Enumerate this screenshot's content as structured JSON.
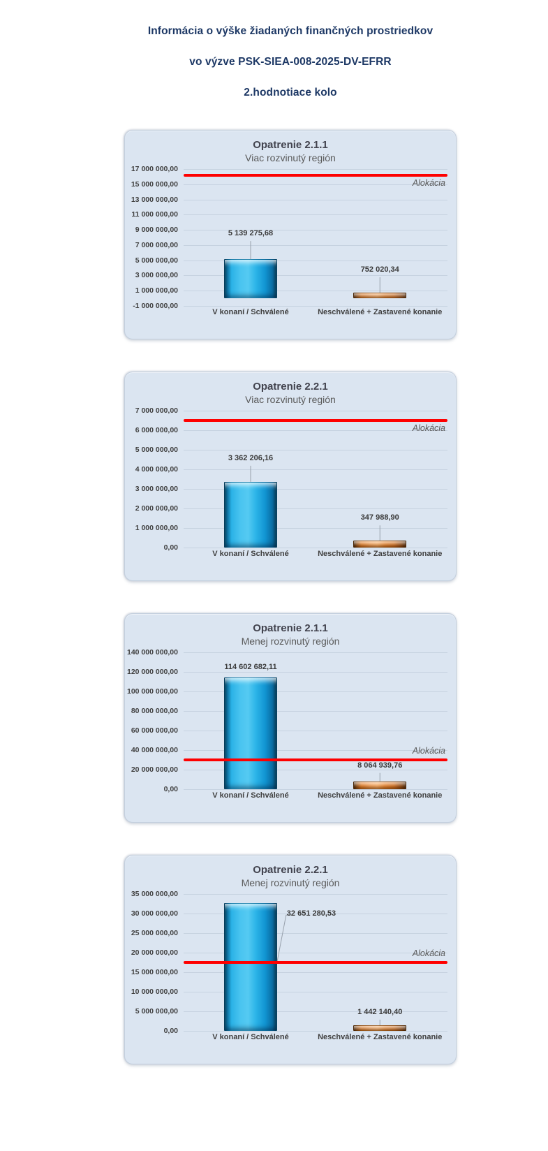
{
  "page": {
    "title_lines": [
      "Informácia o výške žiadaných finančných prostriedkov",
      "vo výzve PSK-SIEA-008-2025-DV-EFRR",
      "2.hodnotiace kolo"
    ]
  },
  "colors": {
    "page_title": "#1d3865",
    "panel_background": "#dbe5f1",
    "gridline": "#c6d2e0",
    "allocation_line": "#fe0000",
    "bar_blue": "#1ea7e0",
    "bar_orange": "#e07b22",
    "chart_title": "#42434e",
    "chart_subtitle": "#595959",
    "value_label": "#3a3a3a",
    "leader_line": "#98a1ac"
  },
  "chart_data": [
    {
      "type": "bar",
      "title": "Opatrenie 2.1.1",
      "subtitle": "Viac rozvinutý región",
      "categories": [
        "V konaní / Schválené",
        "Neschválené + Zastavené konanie"
      ],
      "values": [
        5139275.68,
        752020.34
      ],
      "value_labels": [
        "5 139 275,68",
        "752 020,34"
      ],
      "bar_colors": [
        "blue",
        "orange"
      ],
      "ylim": [
        -1000000,
        17000000
      ],
      "y_ticks": [
        {
          "value": 17000000,
          "label": "17 000 000,00"
        },
        {
          "value": 15000000,
          "label": "15 000 000,00"
        },
        {
          "value": 13000000,
          "label": "13 000 000,00"
        },
        {
          "value": 11000000,
          "label": "11 000 000,00"
        },
        {
          "value": 9000000,
          "label": "9 000 000,00"
        },
        {
          "value": 7000000,
          "label": "7 000 000,00"
        },
        {
          "value": 5000000,
          "label": "5 000 000,00"
        },
        {
          "value": 3000000,
          "label": "3 000 000,00"
        },
        {
          "value": 1000000,
          "label": "1 000 000,00"
        },
        {
          "value": -1000000,
          "label": "-1 000 000,00"
        }
      ],
      "allocation": {
        "label": "Alokácia",
        "value": 16200000,
        "label_position": "below"
      },
      "grid": true,
      "legend": "none",
      "label_layout": [
        {
          "placement": "above",
          "gap": 28
        },
        {
          "placement": "above",
          "gap": 24
        }
      ]
    },
    {
      "type": "bar",
      "title": "Opatrenie 2.2.1",
      "subtitle": "Viac rozvinutý región",
      "categories": [
        "V konaní / Schválené",
        "Neschválené + Zastavené konanie"
      ],
      "values": [
        3362206.16,
        347988.9
      ],
      "value_labels": [
        "3 362 206,16",
        "347 988,90"
      ],
      "bar_colors": [
        "blue",
        "orange"
      ],
      "ylim": [
        0,
        7000000
      ],
      "y_ticks": [
        {
          "value": 7000000,
          "label": "7 000 000,00"
        },
        {
          "value": 6000000,
          "label": "6 000 000,00"
        },
        {
          "value": 5000000,
          "label": "5 000 000,00"
        },
        {
          "value": 4000000,
          "label": "4 000 000,00"
        },
        {
          "value": 3000000,
          "label": "3 000 000,00"
        },
        {
          "value": 2000000,
          "label": "2 000 000,00"
        },
        {
          "value": 1000000,
          "label": "1 000 000,00"
        },
        {
          "value": 0,
          "label": "0,00"
        }
      ],
      "allocation": {
        "label": "Alokácia",
        "value": 6500000,
        "label_position": "below"
      },
      "grid": true,
      "legend": "none",
      "label_layout": [
        {
          "placement": "above",
          "gap": 25
        },
        {
          "placement": "above",
          "gap": 24
        }
      ]
    },
    {
      "type": "bar",
      "title": "Opatrenie 2.1.1",
      "subtitle": "Menej rozvinutý región",
      "categories": [
        "V konaní / Schválené",
        "Neschválené + Zastavené konanie"
      ],
      "values": [
        114602682.11,
        8064939.76
      ],
      "value_labels": [
        "114 602 682,11",
        "8 064 939,76"
      ],
      "bar_colors": [
        "blue",
        "orange"
      ],
      "ylim": [
        0,
        140000000
      ],
      "y_ticks": [
        {
          "value": 140000000,
          "label": "140 000 000,00"
        },
        {
          "value": 120000000,
          "label": "120 000 000,00"
        },
        {
          "value": 100000000,
          "label": "100 000 000,00"
        },
        {
          "value": 80000000,
          "label": "80 000 000,00"
        },
        {
          "value": 60000000,
          "label": "60 000 000,00"
        },
        {
          "value": 40000000,
          "label": "40 000 000,00"
        },
        {
          "value": 20000000,
          "label": "20 000 000,00"
        },
        {
          "value": 0,
          "label": "0,00"
        }
      ],
      "allocation": {
        "label": "Alokácia",
        "value": 30000000,
        "label_position": "above"
      },
      "grid": true,
      "legend": "none",
      "label_layout": [
        {
          "placement": "above",
          "gap": 6
        },
        {
          "placement": "above",
          "gap": 14
        }
      ]
    },
    {
      "type": "bar",
      "title": "Opatrenie 2.2.1",
      "subtitle": "Menej rozvinutý región",
      "categories": [
        "V konaní / Schválené",
        "Neschválené + Zastavené konanie"
      ],
      "values": [
        32651280.53,
        1442140.4
      ],
      "value_labels": [
        "32 651 280,53",
        "1 442 140,40"
      ],
      "bar_colors": [
        "blue",
        "orange"
      ],
      "ylim": [
        0,
        35000000
      ],
      "y_ticks": [
        {
          "value": 35000000,
          "label": "35 000 000,00"
        },
        {
          "value": 30000000,
          "label": "30 000 000,00"
        },
        {
          "value": 25000000,
          "label": "25 000 000,00"
        },
        {
          "value": 20000000,
          "label": "20 000 000,00"
        },
        {
          "value": 15000000,
          "label": "15 000 000,00"
        },
        {
          "value": 10000000,
          "label": "10 000 000,00"
        },
        {
          "value": 5000000,
          "label": "5 000 000,00"
        },
        {
          "value": 0,
          "label": "0,00"
        }
      ],
      "allocation": {
        "label": "Alokácia",
        "value": 17500000,
        "label_position": "above"
      },
      "grid": true,
      "legend": "none",
      "label_layout": [
        {
          "placement": "side",
          "at_value": 29600000,
          "offset": 14
        },
        {
          "placement": "above",
          "gap": 10
        }
      ]
    }
  ]
}
